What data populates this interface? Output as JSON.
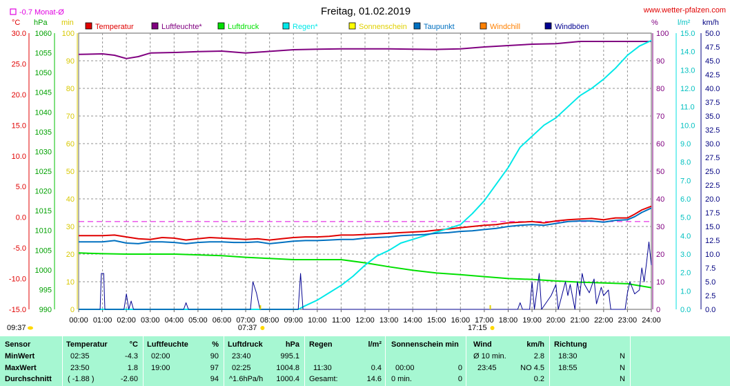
{
  "chart_data": {
    "type": "line",
    "title": "Freitag, 01.02.2019",
    "source": "www.wetter-pfalzen.com",
    "month_avg_label": "-0.7 Monat-Ø",
    "sunrise": "07:37",
    "sunset": "17:15",
    "now_time": "09:37",
    "axes": {
      "temp": {
        "unit": "°C",
        "min": -15,
        "max": 30,
        "step": 5,
        "decimals": 1
      },
      "press": {
        "unit": "hPa",
        "min": 990,
        "max": 1060,
        "step": 5,
        "decimals": 0
      },
      "sun": {
        "unit": "min",
        "min": 0,
        "max": 100,
        "step": 10,
        "decimals": 0
      },
      "hum": {
        "unit": "%",
        "min": 0,
        "max": 100,
        "step": 10,
        "decimals": 0
      },
      "rain": {
        "unit": "l/m²",
        "min": 0,
        "max": 15,
        "step": 1,
        "decimals": 1
      },
      "wind": {
        "unit": "km/h",
        "min": 0,
        "max": 50,
        "step": 2.5,
        "decimals": 1
      }
    },
    "x_labels": [
      "00:00",
      "01:00",
      "02:00",
      "03:00",
      "04:00",
      "05:00",
      "06:00",
      "07:00",
      "08:00",
      "09:00",
      "10:00",
      "11:00",
      "12:00",
      "13:00",
      "14:00",
      "15:00",
      "16:00",
      "17:00",
      "18:00",
      "19:00",
      "20:00",
      "21:00",
      "22:00",
      "23:00",
      "24:00"
    ],
    "legend": [
      {
        "name": "Temperatur",
        "color": "#e00000"
      },
      {
        "name": "Luftfeuchte*",
        "color": "#800080"
      },
      {
        "name": "Luftdruck",
        "color": "#00e000"
      },
      {
        "name": "Regen*",
        "color": "#00e8e8"
      },
      {
        "name": "Sonnenschein",
        "color": "#ffff00"
      },
      {
        "name": "Taupunkt",
        "color": "#0070c0"
      },
      {
        "name": "Windchill",
        "color": "#ff8000"
      },
      {
        "name": "Windböen",
        "color": "#000090"
      }
    ],
    "month_avg": -0.7,
    "series": [
      {
        "name": "Temperatur",
        "axis": "temp",
        "color": "#e00000",
        "width": 2,
        "points": [
          [
            0,
            -3.0
          ],
          [
            1,
            -3.0
          ],
          [
            1.5,
            -2.9
          ],
          [
            2,
            -3.2
          ],
          [
            2.5,
            -3.5
          ],
          [
            3,
            -3.6
          ],
          [
            3.5,
            -3.3
          ],
          [
            4,
            -3.4
          ],
          [
            4.5,
            -3.7
          ],
          [
            5,
            -3.5
          ],
          [
            5.5,
            -3.3
          ],
          [
            6,
            -3.4
          ],
          [
            6.5,
            -3.5
          ],
          [
            7,
            -3.6
          ],
          [
            7.5,
            -3.5
          ],
          [
            8,
            -3.7
          ],
          [
            8.5,
            -3.5
          ],
          [
            9,
            -3.3
          ],
          [
            9.5,
            -3.2
          ],
          [
            10,
            -3.2
          ],
          [
            10.5,
            -3.1
          ],
          [
            11,
            -2.9
          ],
          [
            11.5,
            -2.9
          ],
          [
            12,
            -2.8
          ],
          [
            12.5,
            -2.7
          ],
          [
            13,
            -2.6
          ],
          [
            13.5,
            -2.5
          ],
          [
            14,
            -2.4
          ],
          [
            14.5,
            -2.3
          ],
          [
            15,
            -2.1
          ],
          [
            15.5,
            -1.9
          ],
          [
            16,
            -1.7
          ],
          [
            16.5,
            -1.5
          ],
          [
            17,
            -1.3
          ],
          [
            17.5,
            -1.2
          ],
          [
            18,
            -0.9
          ],
          [
            18.5,
            -0.8
          ],
          [
            19,
            -0.7
          ],
          [
            19.5,
            -0.9
          ],
          [
            20,
            -0.6
          ],
          [
            20.5,
            -0.4
          ],
          [
            21,
            -0.3
          ],
          [
            21.5,
            -0.2
          ],
          [
            22,
            -0.4
          ],
          [
            22.5,
            -0.1
          ],
          [
            23,
            -0.1
          ],
          [
            23.3,
            0.5
          ],
          [
            23.6,
            1.2
          ],
          [
            24,
            1.8
          ]
        ]
      },
      {
        "name": "Luftfeuchte*",
        "axis": "hum",
        "color": "#800080",
        "width": 2,
        "points": [
          [
            0,
            92.3
          ],
          [
            1,
            92.5
          ],
          [
            1.5,
            92
          ],
          [
            2,
            90.8
          ],
          [
            2.5,
            91.5
          ],
          [
            3,
            92.8
          ],
          [
            4,
            93.0
          ],
          [
            5,
            93.3
          ],
          [
            6,
            93.5
          ],
          [
            7,
            92.8
          ],
          [
            8,
            93.4
          ],
          [
            9,
            94
          ],
          [
            10,
            94.2
          ],
          [
            11,
            94.3
          ],
          [
            12,
            94.3
          ],
          [
            13,
            94.3
          ],
          [
            14,
            94.2
          ],
          [
            15,
            94.1
          ],
          [
            16,
            94.3
          ],
          [
            17,
            95
          ],
          [
            18,
            95.5
          ],
          [
            19,
            96
          ],
          [
            20,
            96.2
          ],
          [
            21,
            97
          ],
          [
            22,
            97
          ],
          [
            23,
            97
          ],
          [
            24,
            97
          ]
        ]
      },
      {
        "name": "Luftdruck",
        "axis": "press",
        "color": "#00e000",
        "width": 2,
        "points": [
          [
            0,
            1004.3
          ],
          [
            1,
            1004.1
          ],
          [
            2,
            1004.0
          ],
          [
            3,
            1004.0
          ],
          [
            4,
            1004.0
          ],
          [
            5,
            1003.8
          ],
          [
            6,
            1003.6
          ],
          [
            7,
            1003.2
          ],
          [
            8,
            1002.9
          ],
          [
            9,
            1002.6
          ],
          [
            10,
            1002.6
          ],
          [
            11,
            1002.6
          ],
          [
            12,
            1001.8
          ],
          [
            13,
            1000.8
          ],
          [
            14,
            999.9
          ],
          [
            15,
            999.2
          ],
          [
            16,
            998.8
          ],
          [
            17,
            998.3
          ],
          [
            18,
            997.8
          ],
          [
            19,
            997.6
          ],
          [
            20,
            997.2
          ],
          [
            21,
            996.9
          ],
          [
            22,
            996.7
          ],
          [
            23,
            996.5
          ],
          [
            24,
            995.5
          ]
        ]
      },
      {
        "name": "Regen*",
        "axis": "rain",
        "color": "#00e8e8",
        "width": 2,
        "points": [
          [
            0,
            0
          ],
          [
            9.2,
            0
          ],
          [
            9.5,
            0.2
          ],
          [
            10,
            0.5
          ],
          [
            10.5,
            0.9
          ],
          [
            11,
            1.3
          ],
          [
            11.5,
            1.8
          ],
          [
            12,
            2.4
          ],
          [
            12.5,
            2.9
          ],
          [
            13,
            3.2
          ],
          [
            13.5,
            3.6
          ],
          [
            14,
            3.8
          ],
          [
            14.5,
            4.0
          ],
          [
            15,
            4.2
          ],
          [
            15.5,
            4.4
          ],
          [
            16,
            4.6
          ],
          [
            16.5,
            5.2
          ],
          [
            17,
            5.9
          ],
          [
            17.5,
            6.8
          ],
          [
            18,
            7.7
          ],
          [
            18.5,
            8.8
          ],
          [
            19,
            9.4
          ],
          [
            19.5,
            10.0
          ],
          [
            20,
            10.4
          ],
          [
            20.5,
            11.0
          ],
          [
            21,
            11.6
          ],
          [
            21.5,
            12.0
          ],
          [
            22,
            12.5
          ],
          [
            22.5,
            13.1
          ],
          [
            23,
            13.8
          ],
          [
            23.5,
            14.3
          ],
          [
            24,
            14.6
          ]
        ]
      },
      {
        "name": "Taupunkt",
        "axis": "temp",
        "color": "#0070c0",
        "width": 2,
        "points": [
          [
            0,
            -4.0
          ],
          [
            1,
            -4.0
          ],
          [
            1.5,
            -3.8
          ],
          [
            2,
            -4.2
          ],
          [
            2.5,
            -4.3
          ],
          [
            3,
            -4.0
          ],
          [
            3.5,
            -4.0
          ],
          [
            4,
            -4.1
          ],
          [
            4.5,
            -4.3
          ],
          [
            5,
            -4.1
          ],
          [
            5.5,
            -4.0
          ],
          [
            6,
            -4.0
          ],
          [
            6.5,
            -4.1
          ],
          [
            7,
            -4.1
          ],
          [
            7.5,
            -4.0
          ],
          [
            8,
            -4.3
          ],
          [
            8.5,
            -4.1
          ],
          [
            9,
            -3.9
          ],
          [
            9.5,
            -3.8
          ],
          [
            10,
            -3.8
          ],
          [
            10.5,
            -3.7
          ],
          [
            11,
            -3.6
          ],
          [
            11.5,
            -3.6
          ],
          [
            12,
            -3.4
          ],
          [
            12.5,
            -3.3
          ],
          [
            13,
            -3.2
          ],
          [
            13.5,
            -3.0
          ],
          [
            14,
            -2.9
          ],
          [
            14.5,
            -2.8
          ],
          [
            15,
            -2.6
          ],
          [
            15.5,
            -2.5
          ],
          [
            16,
            -2.3
          ],
          [
            16.5,
            -2.2
          ],
          [
            17,
            -2.0
          ],
          [
            17.5,
            -1.8
          ],
          [
            18,
            -1.5
          ],
          [
            18.5,
            -1.3
          ],
          [
            19,
            -1.2
          ],
          [
            19.5,
            -1.3
          ],
          [
            20,
            -1.0
          ],
          [
            20.5,
            -0.7
          ],
          [
            21,
            -0.6
          ],
          [
            21.5,
            -0.6
          ],
          [
            22,
            -0.8
          ],
          [
            22.5,
            -0.5
          ],
          [
            23,
            -0.4
          ],
          [
            23.3,
            0.1
          ],
          [
            23.6,
            0.8
          ],
          [
            24,
            1.5
          ]
        ]
      },
      {
        "name": "Windböen",
        "axis": "wind",
        "color": "#000090",
        "width": 1,
        "points": [
          [
            0,
            0
          ],
          [
            0.9,
            0
          ],
          [
            0.95,
            6.5
          ],
          [
            1.05,
            6.5
          ],
          [
            1.1,
            0
          ],
          [
            1.9,
            0
          ],
          [
            2.0,
            2.8
          ],
          [
            2.1,
            0
          ],
          [
            2.2,
            1.5
          ],
          [
            2.3,
            0
          ],
          [
            4.4,
            0
          ],
          [
            4.5,
            1.2
          ],
          [
            4.6,
            0
          ],
          [
            7.2,
            0
          ],
          [
            7.3,
            5.0
          ],
          [
            7.45,
            3.0
          ],
          [
            7.6,
            0
          ],
          [
            9.2,
            0
          ],
          [
            9.3,
            6.5
          ],
          [
            9.4,
            0
          ],
          [
            18.4,
            0
          ],
          [
            18.5,
            1.2
          ],
          [
            18.6,
            0
          ],
          [
            18.9,
            0
          ],
          [
            19.0,
            5.0
          ],
          [
            19.1,
            0
          ],
          [
            19.3,
            6.5
          ],
          [
            19.4,
            0
          ],
          [
            19.8,
            2.5
          ],
          [
            20.0,
            4.5
          ],
          [
            20.1,
            0
          ],
          [
            20.4,
            5.0
          ],
          [
            20.5,
            2.5
          ],
          [
            20.6,
            4.5
          ],
          [
            20.8,
            0
          ],
          [
            20.9,
            5.0
          ],
          [
            21.0,
            2.5
          ],
          [
            21.1,
            6.5
          ],
          [
            21.2,
            4.5
          ],
          [
            21.4,
            3.0
          ],
          [
            21.6,
            5.5
          ],
          [
            21.7,
            1.0
          ],
          [
            21.9,
            4.0
          ],
          [
            22.0,
            2.5
          ],
          [
            22.2,
            3.5
          ],
          [
            22.3,
            0
          ],
          [
            22.9,
            0
          ],
          [
            23.0,
            3.0
          ],
          [
            23.1,
            5.0
          ],
          [
            23.3,
            2.8
          ],
          [
            23.5,
            3.5
          ],
          [
            23.6,
            7.5
          ],
          [
            23.7,
            5.0
          ],
          [
            23.8,
            8.5
          ],
          [
            23.9,
            12.2
          ],
          [
            24,
            8.0
          ]
        ]
      }
    ]
  },
  "stats": {
    "headers": {
      "sensor": "Sensor",
      "temp": "Temperatur",
      "temp_unit": "°C",
      "hum": "Luftfeuchte",
      "hum_unit": "%",
      "press": "Luftdruck",
      "press_unit": "hPa",
      "rain": "Regen",
      "rain_unit": "l/m²",
      "sun": "Sonnenschein min",
      "wind": "Wind",
      "wind_unit": "km/h",
      "dir": "Richtung"
    },
    "rows": [
      {
        "label": "MinWert",
        "temp_time": "02:35",
        "temp_val": "-4.3",
        "hum_time": "02:00",
        "hum_val": "90",
        "press_time": "23:40",
        "press_val": "995.1",
        "rain_time": "",
        "rain_val": "",
        "sun_time": "",
        "sun_val": "",
        "wind_time": "Ø 10 min.",
        "wind_val": "2.8",
        "dir_time": "18:30",
        "dir_val": "N"
      },
      {
        "label": "MaxWert",
        "temp_time": "23:50",
        "temp_val": "1.8",
        "hum_time": "19:00",
        "hum_val": "97",
        "press_time": "02:25",
        "press_val": "1004.8",
        "rain_time": "11:30",
        "rain_val": "0.4",
        "sun_time": "00:00",
        "sun_val": "0",
        "wind_time": "23:45",
        "wind_val": "NO 4.5",
        "dir_time": "18:55",
        "dir_val": "N"
      },
      {
        "label": "Durchschnitt",
        "temp_time": "( -1.88 )",
        "temp_val": "-2.60",
        "hum_time": "",
        "hum_val": "94",
        "press_time": "^1.6hPa/h",
        "press_val": "1000.4",
        "rain_time": "Gesamt:",
        "rain_val": "14.6",
        "sun_time": "0 min.",
        "sun_val": "0",
        "wind_time": "",
        "wind_val": "0.2",
        "dir_time": "",
        "dir_val": "N"
      }
    ]
  }
}
